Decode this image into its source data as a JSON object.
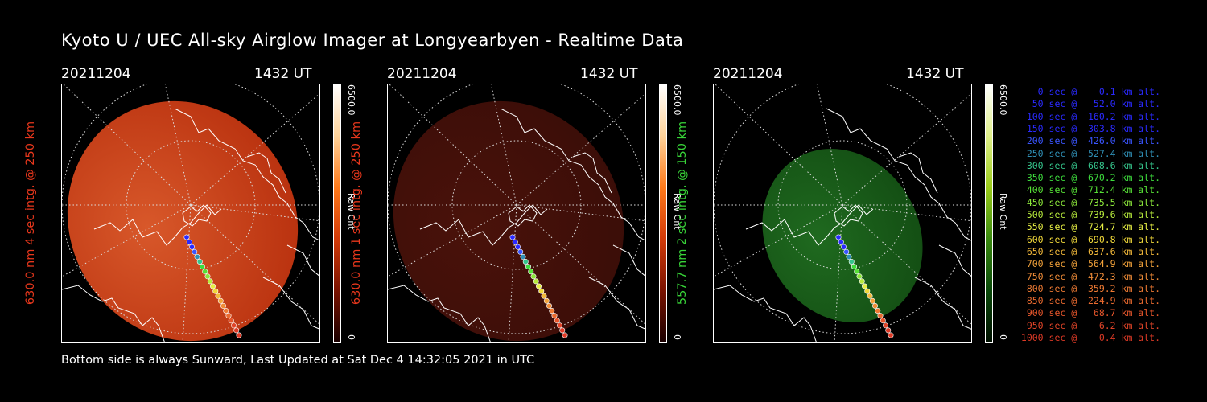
{
  "title": "Kyoto U / UEC All-sky Airglow Imager at Longyearbyen - Realtime Data",
  "footer": "Bottom side is always Sunward, Last Updated at Sat Dec  4 14:32:05 2021 in UTC",
  "panels": [
    {
      "date": "20211204",
      "time": "1432 UT",
      "vertical_label": "630.0 nm 4 sec intg. @ 250 km",
      "label_color": "#e8371c",
      "colorbar_max": "6500.0",
      "colorbar_min": "0",
      "colorbar_unit": "Raw Cnt",
      "brightness": "bright",
      "tint": "#b8300e"
    },
    {
      "date": "20211204",
      "time": "1432 UT",
      "vertical_label": "630.0 nm 1 sec intg. @ 250 km",
      "label_color": "#e8371c",
      "colorbar_max": "6500.0",
      "colorbar_min": "0",
      "colorbar_unit": "Raw Cnt",
      "brightness": "dim",
      "tint": "#3a0d08"
    },
    {
      "date": "20211204",
      "time": "1432 UT",
      "vertical_label": "557.7 nm 2 sec intg. @ 150 km",
      "label_color": "#38d438",
      "colorbar_max": "6500.0",
      "colorbar_min": "0",
      "colorbar_unit": "Raw Cnt",
      "brightness": "mid",
      "tint": "#134d13"
    }
  ],
  "legend": [
    {
      "text": "   0 sec @    0.1 km alt.",
      "color": "#2a2aff"
    },
    {
      "text": "  50 sec @   52.0 km alt.",
      "color": "#2a2aff"
    },
    {
      "text": " 100 sec @  160.2 km alt.",
      "color": "#2a2aff"
    },
    {
      "text": " 150 sec @  303.8 km alt.",
      "color": "#2a2aff"
    },
    {
      "text": " 200 sec @  426.0 km alt.",
      "color": "#3a55ff"
    },
    {
      "text": " 250 sec @  527.4 km alt.",
      "color": "#2f8fb5"
    },
    {
      "text": " 300 sec @  608.6 km alt.",
      "color": "#35c48b"
    },
    {
      "text": " 350 sec @  670.2 km alt.",
      "color": "#3ddc3d"
    },
    {
      "text": " 400 sec @  712.4 km alt.",
      "color": "#56e036"
    },
    {
      "text": " 450 sec @  735.5 km alt.",
      "color": "#8be63a"
    },
    {
      "text": " 500 sec @  739.6 km alt.",
      "color": "#b7ea3c"
    },
    {
      "text": " 550 sec @  724.7 km alt.",
      "color": "#e6ee44"
    },
    {
      "text": " 600 sec @  690.8 km alt.",
      "color": "#f0d83a"
    },
    {
      "text": " 650 sec @  637.6 km alt.",
      "color": "#f3b93a"
    },
    {
      "text": " 700 sec @  564.9 km alt.",
      "color": "#f3a23a"
    },
    {
      "text": " 750 sec @  472.3 km alt.",
      "color": "#f08c38"
    },
    {
      "text": " 800 sec @  359.2 km alt.",
      "color": "#ee7a33"
    },
    {
      "text": " 850 sec @  224.9 km alt.",
      "color": "#ea6a2f"
    },
    {
      "text": " 900 sec @   68.7 km alt.",
      "color": "#e5552b"
    },
    {
      "text": " 950 sec @    6.2 km alt.",
      "color": "#e04428"
    },
    {
      "text": "1000 sec @    0.4 km alt.",
      "color": "#dd3a26"
    }
  ]
}
